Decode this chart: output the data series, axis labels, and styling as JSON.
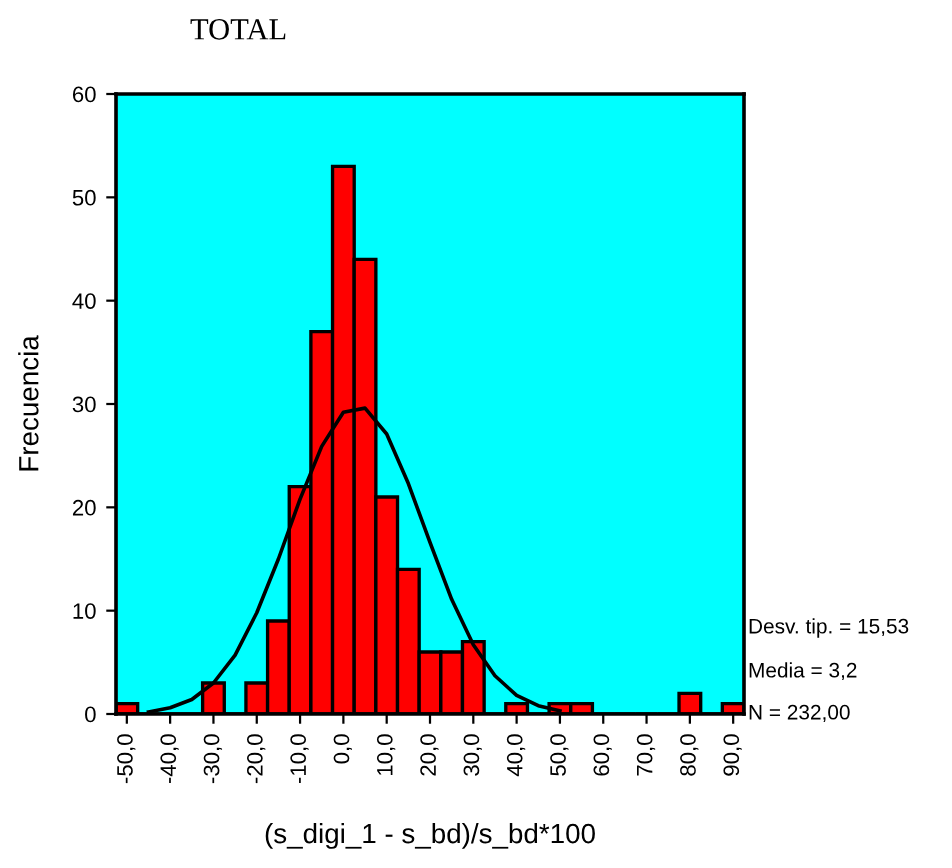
{
  "chart_data": {
    "type": "histogram",
    "title": "TOTAL",
    "xlabel": "(s_digi_1 - s_bd)/s_bd*100",
    "ylabel": "Frecuencia",
    "bins": [
      -52.5,
      -47.5,
      -42.5,
      -37.5,
      -32.5,
      -27.5,
      -22.5,
      -17.5,
      -12.5,
      -7.5,
      -2.5,
      2.5,
      7.5,
      12.5,
      17.5,
      22.5,
      27.5,
      32.5,
      37.5,
      42.5,
      47.5,
      52.5,
      57.5,
      62.5,
      67.5,
      72.5,
      77.5,
      82.5,
      87.5,
      92.5
    ],
    "series": [
      {
        "color": "#ff0000",
        "values": [
          1,
          0,
          0,
          0,
          3,
          0,
          3,
          9,
          22,
          37,
          53,
          44,
          21,
          14,
          6,
          6,
          7,
          0,
          1,
          0,
          1,
          1,
          0,
          0,
          0,
          0,
          2,
          0,
          1
        ]
      },
      {
        "type": "line",
        "color": "#000000",
        "x": [
          -45,
          -40,
          -35,
          -30,
          -25,
          -20,
          -15,
          -10,
          -5,
          0,
          5,
          10,
          15,
          20,
          25,
          30,
          35,
          40,
          45,
          50
        ],
        "values": [
          0.2,
          0.6,
          1.4,
          3.0,
          5.7,
          9.8,
          15.0,
          20.8,
          25.9,
          29.2,
          29.6,
          27.1,
          22.3,
          16.6,
          11.1,
          6.7,
          3.7,
          1.8,
          0.8,
          0.3
        ]
      }
    ],
    "xlim": [
      -52.5,
      92.5
    ],
    "ylim": [
      0,
      60
    ],
    "xticks": [
      {
        "value": -50,
        "label": "-50,0"
      },
      {
        "value": -40,
        "label": "-40,0"
      },
      {
        "value": -30,
        "label": "-30,0"
      },
      {
        "value": -20,
        "label": "-20,0"
      },
      {
        "value": -10,
        "label": "-10,0"
      },
      {
        "value": 0,
        "label": "0,0"
      },
      {
        "value": 10,
        "label": "10,0"
      },
      {
        "value": 20,
        "label": "20,0"
      },
      {
        "value": 30,
        "label": "30,0"
      },
      {
        "value": 40,
        "label": "40,0"
      },
      {
        "value": 50,
        "label": "50,0"
      },
      {
        "value": 60,
        "label": "60,0"
      },
      {
        "value": 70,
        "label": "70,0"
      },
      {
        "value": 80,
        "label": "80,0"
      },
      {
        "value": 90,
        "label": "90,0"
      }
    ],
    "yticks": [
      0,
      10,
      20,
      30,
      40,
      50,
      60
    ],
    "annotations": [
      "Desv. tip. = 15,53",
      "Media = 3,2",
      "N = 232,00"
    ],
    "grid": false,
    "legend": false
  }
}
